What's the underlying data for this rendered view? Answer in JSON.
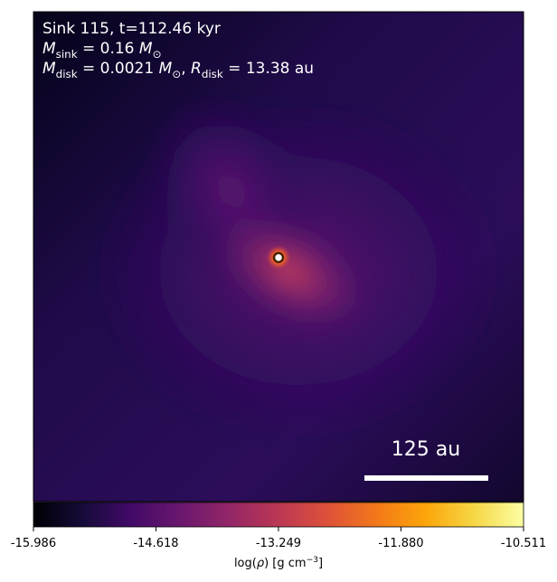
{
  "chart_data": {
    "type": "image",
    "colormap": "inferno",
    "annotations": [
      [
        {
          "text": "Sink 115, t=112.46 kyr"
        }
      ],
      [
        {
          "text": "M",
          "style": "italic"
        },
        {
          "text": "sink",
          "style": "sub"
        },
        {
          "text": " = 0.16 "
        },
        {
          "text": "M",
          "style": "italic"
        },
        {
          "text": "⊙",
          "style": "sub"
        }
      ],
      [
        {
          "text": "M",
          "style": "italic"
        },
        {
          "text": "disk",
          "style": "sub"
        },
        {
          "text": " = 0.0021 "
        },
        {
          "text": "M",
          "style": "italic"
        },
        {
          "text": "⊙",
          "style": "sub"
        },
        {
          "text": ", "
        },
        {
          "text": "R",
          "style": "italic"
        },
        {
          "text": "disk",
          "style": "sub"
        },
        {
          "text": " = 13.38 au"
        }
      ]
    ],
    "scale_bar": "125 au",
    "colorbar": {
      "label": [
        {
          "text": "log("
        },
        {
          "text": "ρ",
          "style": "italic"
        },
        {
          "text": ") [g cm"
        },
        {
          "text": "−3",
          "style": "sup"
        },
        {
          "text": "]"
        }
      ],
      "lim": [
        -15.986,
        -10.511
      ],
      "ticks": [
        -15.986,
        -14.618,
        -13.249,
        {
          "value": -11.88,
          "label": "-11.880"
        },
        -10.511
      ]
    }
  }
}
